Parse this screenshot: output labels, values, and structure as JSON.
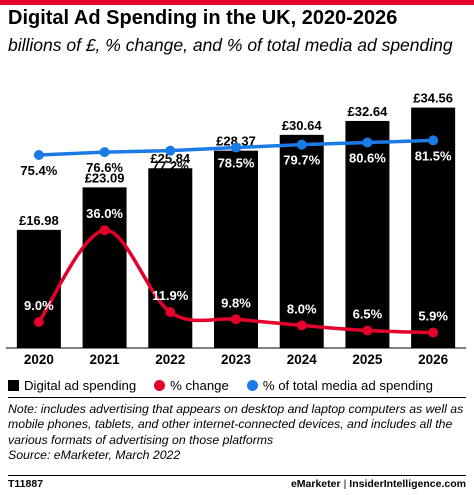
{
  "chart_data": {
    "type": "bar",
    "title": "Digital Ad Spending in the UK, 2020-2026",
    "subtitle": "billions of £, % change, and % of total media ad spending",
    "categories": [
      "2020",
      "2021",
      "2022",
      "2023",
      "2024",
      "2025",
      "2026"
    ],
    "series": [
      {
        "name": "Digital ad spending",
        "type": "bar",
        "values": [
          16.98,
          23.09,
          25.84,
          28.37,
          30.64,
          32.64,
          34.56
        ],
        "labels": [
          "£16.98",
          "£23.09",
          "£25.84",
          "£28.37",
          "£30.64",
          "£32.64",
          "£34.56"
        ],
        "color": "#000000"
      },
      {
        "name": "% change",
        "type": "line",
        "values": [
          9.0,
          36.0,
          11.9,
          9.8,
          8.0,
          6.5,
          5.9
        ],
        "labels": [
          "9.0%",
          "36.0%",
          "11.9%",
          "9.8%",
          "8.0%",
          "6.5%",
          "5.9%"
        ],
        "color": "#e4002b"
      },
      {
        "name": "% of total media ad spending",
        "type": "line",
        "values": [
          75.4,
          76.6,
          77.2,
          78.5,
          79.7,
          80.6,
          81.5
        ],
        "labels": [
          "75.4%",
          "76.6%",
          "77.2%",
          "78.5%",
          "79.7%",
          "80.6%",
          "81.5%"
        ],
        "color": "#1a7ae6"
      }
    ],
    "legend": "bottom",
    "grid": false
  },
  "note": "Note: includes advertising that appears on desktop and laptop computers as well as mobile phones, tablets, and other internet-connected devices, and includes all the various formats of advertising on those platforms",
  "source": "Source: eMarketer, March 2022",
  "footer": {
    "id": "T11887",
    "brand1": "eMarketer",
    "sep": "|",
    "brand2": "InsiderIntelligence.com"
  }
}
